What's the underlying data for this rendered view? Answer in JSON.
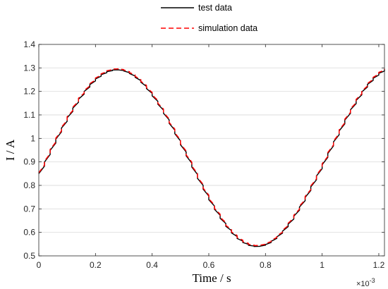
{
  "chart_data": {
    "type": "line",
    "xlabel": "Time / s",
    "ylabel": "I / A",
    "x_exponent_base": "×10",
    "x_exponent_power": "-3",
    "xlim": [
      0,
      0.00122
    ],
    "ylim": [
      0.5,
      1.4
    ],
    "grid": "horizontal",
    "legend_position": "top-center-outside",
    "x_ticks": [
      0,
      0.0002,
      0.0004,
      0.0006,
      0.0008,
      0.001,
      0.0012
    ],
    "x_tick_labels": [
      "0",
      "0.2",
      "0.4",
      "0.6",
      "0.8",
      "1",
      "1.2"
    ],
    "y_ticks": [
      0.5,
      0.6,
      0.7,
      0.8,
      0.9,
      1.0,
      1.1,
      1.2,
      1.3,
      1.4
    ],
    "y_tick_labels": [
      "0.5",
      "0.6",
      "0.7",
      "0.8",
      "0.9",
      "1",
      "1.1",
      "1.2",
      "1.3",
      "1.4"
    ],
    "series": [
      {
        "name": "test data",
        "color": "#000000",
        "dash": "solid",
        "x": [
          0,
          2e-05,
          4e-05,
          6e-05,
          8e-05,
          0.0001,
          0.00012,
          0.00014,
          0.00016,
          0.00018,
          0.0002,
          0.00022,
          0.00024,
          0.00026,
          0.00028,
          0.0003,
          0.00032,
          0.00034,
          0.00036,
          0.00038,
          0.0004,
          0.00042,
          0.00044,
          0.00046,
          0.00048,
          0.0005,
          0.00052,
          0.00054,
          0.00056,
          0.00058,
          0.0006,
          0.00062,
          0.00064,
          0.00066,
          0.00068,
          0.0007,
          0.00072,
          0.00074,
          0.00076,
          0.00078,
          0.0008,
          0.00082,
          0.00084,
          0.00086,
          0.00088,
          0.0009,
          0.00092,
          0.00094,
          0.00096,
          0.00098,
          0.001,
          0.00102,
          0.00104,
          0.00106,
          0.00108,
          0.0011,
          0.00112,
          0.00114,
          0.00116,
          0.00118,
          0.0012,
          0.00122
        ],
        "y": [
          0.85,
          0.899,
          0.949,
          0.997,
          1.044,
          1.088,
          1.129,
          1.167,
          1.2,
          1.229,
          1.253,
          1.271,
          1.284,
          1.291,
          1.292,
          1.287,
          1.276,
          1.26,
          1.239,
          1.212,
          1.181,
          1.146,
          1.107,
          1.064,
          1.02,
          0.973,
          0.926,
          0.878,
          0.83,
          0.784,
          0.739,
          0.698,
          0.66,
          0.626,
          0.598,
          0.574,
          0.557,
          0.545,
          0.54,
          0.541,
          0.548,
          0.562,
          0.581,
          0.605,
          0.635,
          0.669,
          0.708,
          0.749,
          0.794,
          0.84,
          0.888,
          0.936,
          0.985,
          1.032,
          1.078,
          1.122,
          1.162,
          1.198,
          1.23,
          1.256,
          1.277,
          1.292
        ]
      },
      {
        "name": "simulation data",
        "color": "#ff0000",
        "dash": "dashed",
        "x": [
          0,
          2e-05,
          4e-05,
          6e-05,
          8e-05,
          0.0001,
          0.00012,
          0.00014,
          0.00016,
          0.00018,
          0.0002,
          0.00022,
          0.00024,
          0.00026,
          0.00028,
          0.0003,
          0.00032,
          0.00034,
          0.00036,
          0.00038,
          0.0004,
          0.00042,
          0.00044,
          0.00046,
          0.00048,
          0.0005,
          0.00052,
          0.00054,
          0.00056,
          0.00058,
          0.0006,
          0.00062,
          0.00064,
          0.00066,
          0.00068,
          0.0007,
          0.00072,
          0.00074,
          0.00076,
          0.00078,
          0.0008,
          0.00082,
          0.00084,
          0.00086,
          0.00088,
          0.0009,
          0.00092,
          0.00094,
          0.00096,
          0.00098,
          0.001,
          0.00102,
          0.00104,
          0.00106,
          0.00108,
          0.0011,
          0.00112,
          0.00114,
          0.00116,
          0.00118,
          0.0012,
          0.00122
        ],
        "y": [
          0.854,
          0.903,
          0.953,
          1.001,
          1.048,
          1.092,
          1.133,
          1.171,
          1.204,
          1.233,
          1.257,
          1.275,
          1.288,
          1.295,
          1.296,
          1.291,
          1.28,
          1.264,
          1.243,
          1.216,
          1.185,
          1.15,
          1.111,
          1.068,
          1.024,
          0.977,
          0.93,
          0.882,
          0.834,
          0.788,
          0.743,
          0.702,
          0.664,
          0.63,
          0.602,
          0.578,
          0.561,
          0.549,
          0.544,
          0.545,
          0.552,
          0.566,
          0.585,
          0.609,
          0.639,
          0.673,
          0.712,
          0.753,
          0.798,
          0.844,
          0.892,
          0.94,
          0.989,
          1.036,
          1.082,
          1.126,
          1.166,
          1.202,
          1.234,
          1.26,
          1.281,
          1.296
        ]
      }
    ]
  }
}
